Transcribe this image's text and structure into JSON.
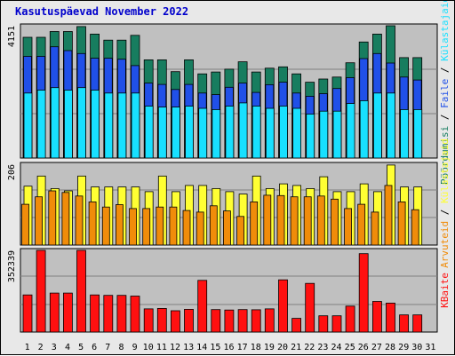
{
  "chart_data": {
    "title": "Kasutuspäevad November 2022",
    "categories": [
      "1",
      "2",
      "3",
      "4",
      "5",
      "6",
      "7",
      "8",
      "9",
      "10",
      "11",
      "12",
      "13",
      "14",
      "15",
      "16",
      "17",
      "18",
      "19",
      "20",
      "21",
      "22",
      "23",
      "24",
      "25",
      "26",
      "27",
      "28",
      "29",
      "30",
      "31"
    ],
    "weekend_days": [
      "5",
      "6",
      "12",
      "13",
      "19",
      "20",
      "26",
      "27"
    ],
    "day_colors": {
      "weekday": "#000000",
      "weekend": "#007f5f"
    },
    "charts": [
      {
        "type": "bar",
        "ymax_label": "4151",
        "ylim": [
          0,
          4151
        ],
        "series": [
          {
            "name": "Pöördumisi",
            "color": "#177d5f",
            "values": [
              3790,
              3790,
              3970,
              3970,
              4126,
              3890,
              3700,
              3700,
              3850,
              3080,
              3080,
              2710,
              3080,
              2640,
              2700,
              2790,
              3020,
              2700,
              2820,
              2860,
              2640,
              2380,
              2480,
              2540,
              2990,
              3640,
              3890,
              4151,
              3150,
              3150,
              0
            ]
          },
          {
            "name": "Faile",
            "color": "#2050e8",
            "values": [
              3190,
              3190,
              3490,
              3370,
              3280,
              3130,
              3130,
              3100,
              2900,
              2350,
              2310,
              2150,
              2310,
              2040,
              1990,
              2220,
              2350,
              2060,
              2300,
              2380,
              2040,
              1940,
              2020,
              2180,
              2520,
              3120,
              3280,
              2980,
              2540,
              2450,
              0
            ]
          },
          {
            "name": "Külastajaid",
            "color": "#18e0ff",
            "values": [
              2040,
              2130,
              2210,
              2130,
              2210,
              2130,
              2040,
              2040,
              2040,
              1630,
              1600,
              1600,
              1630,
              1560,
              1520,
              1630,
              1730,
              1630,
              1560,
              1630,
              1560,
              1380,
              1470,
              1470,
              1710,
              1800,
              2040,
              2040,
              1520,
              1520,
              0
            ]
          }
        ]
      },
      {
        "type": "bar",
        "ymax_label": "206",
        "ylim": [
          0,
          206
        ],
        "series": [
          {
            "name": "Külastajaid",
            "color": "#ffff33",
            "values": [
              150,
              176,
              144,
              138,
              176,
              148,
              148,
              148,
              148,
              136,
              176,
              136,
              152,
              152,
              144,
              136,
              130,
              176,
              144,
              156,
              152,
              144,
              174,
              136,
              136,
              156,
              136,
              204,
              148,
              148,
              0
            ]
          },
          {
            "name": "Arvuteid",
            "color": "#f08c0a",
            "values": [
              104,
              123,
              138,
              134,
              125,
              110,
              97,
              103,
              93,
              93,
              97,
              97,
              88,
              84,
              100,
              87,
              73,
              110,
              127,
              126,
              123,
              123,
              125,
              117,
              93,
              104,
              84,
              152,
              110,
              90,
              0
            ]
          }
        ]
      },
      {
        "type": "bar",
        "ymax_label": "352339",
        "ylim": [
          0,
          352339
        ],
        "series": [
          {
            "name": "KBaite",
            "color": "#ff1010",
            "values": [
              160000,
              352339,
              168000,
              168000,
              352339,
              160000,
              158000,
              158000,
              155000,
              100000,
              102000,
              92000,
              98000,
              223000,
              97000,
              95000,
              97000,
              96000,
              100000,
              225000,
              59000,
              210000,
              70000,
              70000,
              112000,
              338000,
              132000,
              125000,
              74000,
              74000,
              0
            ]
          }
        ]
      }
    ],
    "right_labels": [
      {
        "parts": [
          {
            "text": "Pöördumisi",
            "color": "#177d5f"
          },
          {
            "text": " / ",
            "color": "#000000"
          },
          {
            "text": "Faile",
            "color": "#2050e8"
          },
          {
            "text": " / ",
            "color": "#000000"
          },
          {
            "text": "Külastajaid",
            "color": "#18e0ff"
          }
        ]
      },
      {
        "parts": [
          {
            "text": "Arvuteid",
            "color": "#f08c0a"
          },
          {
            "text": " / ",
            "color": "#000000"
          },
          {
            "text": "Külastajaid",
            "color": "#ffff33"
          }
        ]
      },
      {
        "parts": [
          {
            "text": "KBaite",
            "color": "#ff1010"
          }
        ]
      }
    ],
    "grid": true
  }
}
